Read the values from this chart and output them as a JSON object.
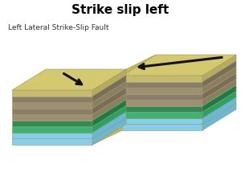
{
  "title": "Strike slip left",
  "subtitle": "Left Lateral Strike-Slip Fault",
  "title_fontsize": 11,
  "subtitle_fontsize": 6.5,
  "bg_color": "#ffffff",
  "layer_colors_front": [
    "#87ceeb",
    "#87ceeb",
    "#3cb371",
    "#2e8b57",
    "#9e9070",
    "#8b7d6b",
    "#9e9070",
    "#8b7d6b",
    "#c8bb6e"
  ],
  "layer_colors_side": [
    "#6ab8d8",
    "#6ab8d8",
    "#2aa361",
    "#1e7b47",
    "#8a8060",
    "#7a6d5a",
    "#8a8060",
    "#7a6d5a",
    "#b8ab5e"
  ],
  "top_color": "#d4c96e",
  "top_color_shaded": "#c2b85e",
  "arrow_color": "#111111",
  "outline_color": "#999966",
  "fault_face_color": "#c2b55a"
}
